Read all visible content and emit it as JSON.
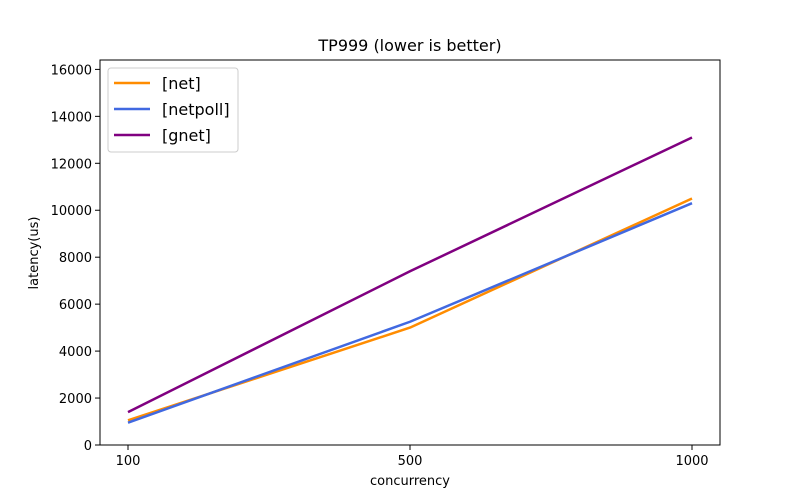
{
  "chart_data": {
    "type": "line",
    "title": "TP999 (lower is better)",
    "xlabel": "concurrency",
    "ylabel": "latency(us)",
    "categories": [
      "100",
      "500",
      "1000"
    ],
    "ylim": [
      0,
      16400
    ],
    "yticks": [
      0,
      2000,
      4000,
      6000,
      8000,
      10000,
      12000,
      14000,
      16000
    ],
    "grid": false,
    "legend_position": "top-left",
    "series": [
      {
        "name": "[net]",
        "color": "#ff8c00",
        "values": [
          1050,
          5000,
          10500
        ]
      },
      {
        "name": "[netpoll]",
        "color": "#4169e1",
        "values": [
          950,
          5250,
          10300
        ]
      },
      {
        "name": "[gnet]",
        "color": "#800080",
        "values": [
          1400,
          7400,
          13100
        ]
      }
    ]
  }
}
